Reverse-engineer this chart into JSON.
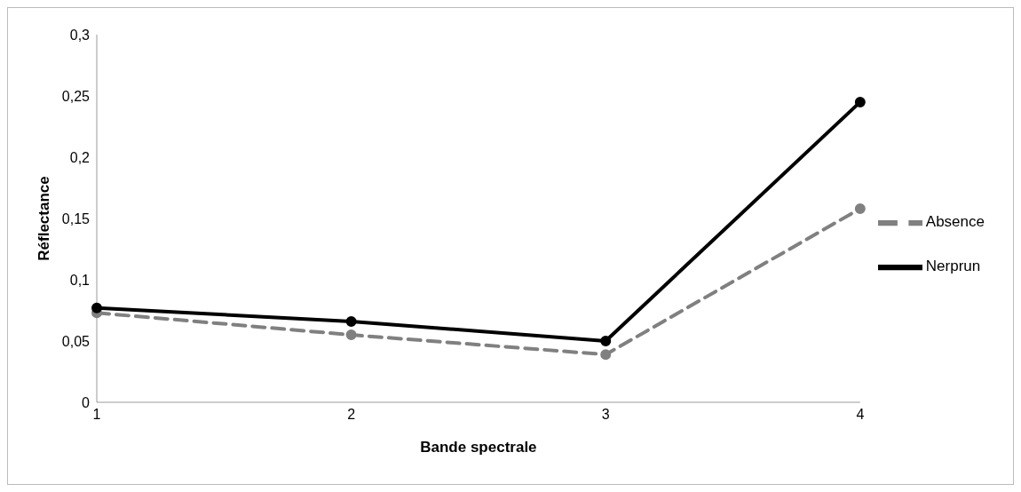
{
  "chart_data": {
    "type": "line",
    "xlabel": "Bande spectrale",
    "ylabel": "Réflectance",
    "categories": [
      "1",
      "2",
      "3",
      "4"
    ],
    "series": [
      {
        "name": "Absence",
        "color": "#808080",
        "line_style": "dashed",
        "values": [
          0.073,
          0.055,
          0.039,
          0.158
        ]
      },
      {
        "name": "Nerprun",
        "color": "#000000",
        "line_style": "solid",
        "values": [
          0.077,
          0.066,
          0.05,
          0.245
        ]
      }
    ],
    "ylim": [
      0,
      0.3
    ],
    "yticks": [
      0,
      {
        "value": 0.05,
        "label": "0,05"
      },
      {
        "value": 0.1,
        "label": "0,1"
      },
      {
        "value": 0.15,
        "label": "0,15"
      },
      {
        "value": 0.2,
        "label": "0,2"
      },
      {
        "value": 0.25,
        "label": "0,25"
      },
      {
        "value": 0.3,
        "label": "0,3"
      }
    ],
    "grid": false,
    "legend": "right",
    "marker": "circle"
  }
}
